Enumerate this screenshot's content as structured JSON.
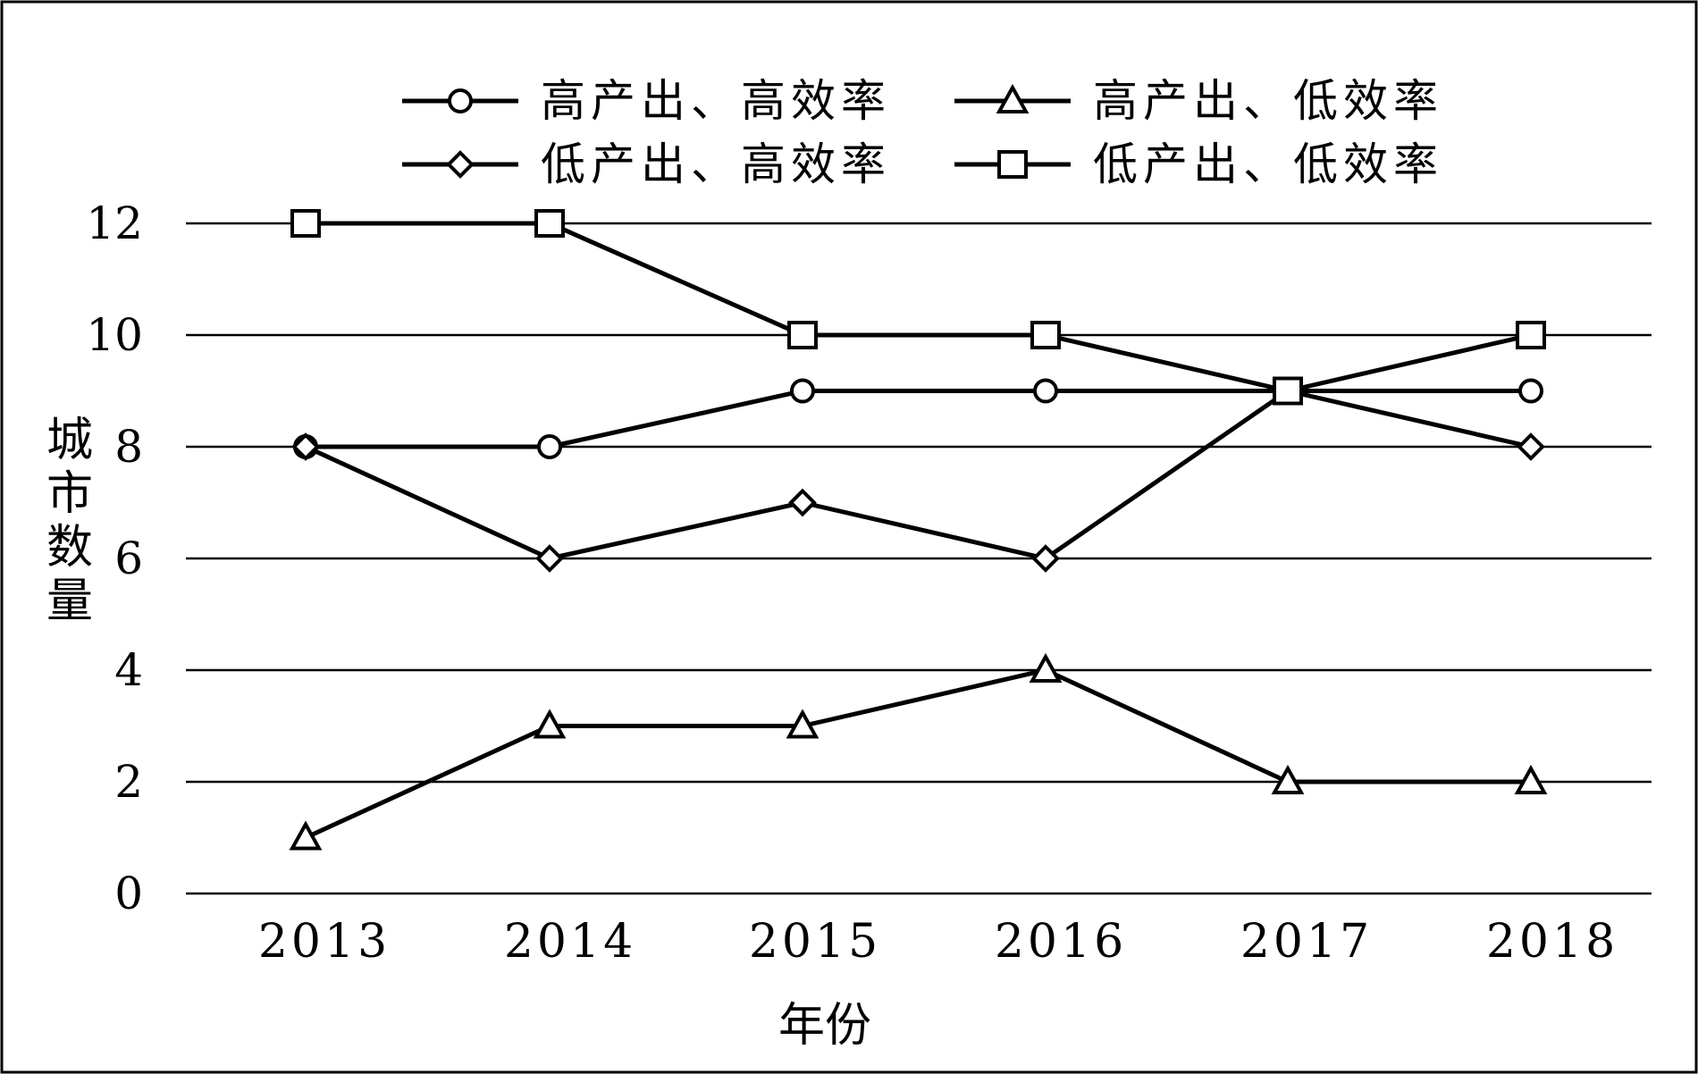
{
  "chart_data": {
    "type": "line",
    "title": "",
    "xlabel": "年份",
    "ylabel": "城市数量",
    "categories": [
      "2013",
      "2014",
      "2015",
      "2016",
      "2017",
      "2018"
    ],
    "ylim": [
      0,
      12
    ],
    "yticks": [
      "0",
      "2",
      "4",
      "6",
      "8",
      "10",
      "12"
    ],
    "grid": "horizontal",
    "legend_position": "top",
    "series": [
      {
        "name": "高产出、高效率",
        "marker": "circle",
        "values": [
          8,
          8,
          9,
          9,
          9,
          9
        ]
      },
      {
        "name": "高产出、低效率",
        "marker": "triangle",
        "values": [
          1,
          3,
          3,
          4,
          2,
          2
        ]
      },
      {
        "name": "低产出、高效率",
        "marker": "diamond",
        "values": [
          8,
          6,
          7,
          6,
          9,
          8
        ]
      },
      {
        "name": "低产出、低效率",
        "marker": "square",
        "values": [
          12,
          12,
          10,
          10,
          9,
          10
        ]
      }
    ]
  }
}
